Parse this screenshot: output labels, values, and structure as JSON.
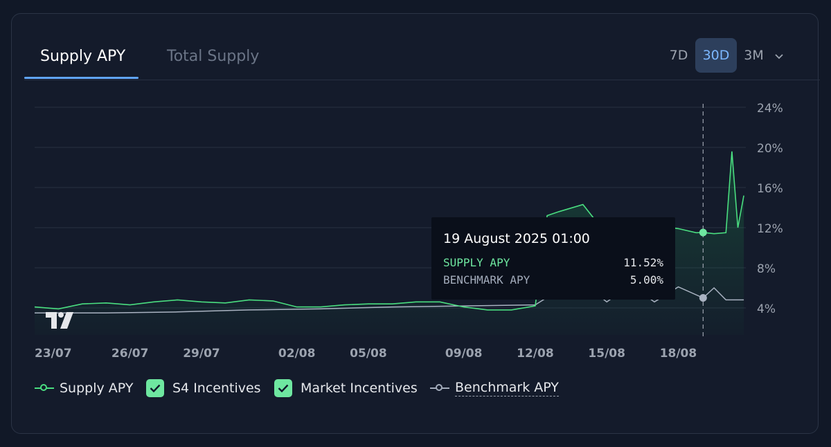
{
  "tabs": [
    {
      "label": "Supply APY",
      "active": true
    },
    {
      "label": "Total Supply",
      "active": false
    }
  ],
  "ranges": [
    {
      "label": "7D",
      "active": false
    },
    {
      "label": "30D",
      "active": true
    },
    {
      "label": "3M",
      "active": false
    }
  ],
  "range_more_icon": "chevron-down-icon",
  "tooltip": {
    "title": "19 August 2025 01:00",
    "rows": [
      {
        "label": "SUPPLY APY",
        "value": "11.52%"
      },
      {
        "label": "BENCHMARK APY",
        "value": "5.00%"
      }
    ]
  },
  "legend": [
    {
      "label": "Supply APY",
      "kind": "line-dot",
      "color": "#4ade80"
    },
    {
      "label": "S4 Incentives",
      "kind": "checkbox",
      "checked": true,
      "color": "#6ee7a0"
    },
    {
      "label": "Market Incentives",
      "kind": "checkbox",
      "checked": true,
      "color": "#6ee7a0"
    },
    {
      "label": "Benchmark APY",
      "kind": "line-dot",
      "color": "#a3acbb"
    }
  ],
  "colors": {
    "supply": "#4ade80",
    "benchmark": "#aab3c2",
    "grid": "#273042",
    "axis_text": "#9ca3af",
    "active_tab_underline": "#60a5fa"
  },
  "chart_data": {
    "type": "line",
    "x_axis_ticks": [
      "23/07",
      "26/07",
      "29/07",
      "02/08",
      "05/08",
      "09/08",
      "12/08",
      "15/08",
      "18/08"
    ],
    "y_axis_ticks": [
      "24%",
      "20%",
      "16%",
      "12%",
      "8%",
      "4%"
    ],
    "ylim": [
      0,
      24
    ],
    "y_ticks_values": [
      24,
      20,
      16,
      12,
      8,
      4
    ],
    "x_domain": [
      "2025-07-22",
      "2025-08-20"
    ],
    "grid": true,
    "crosshair": {
      "date": "2025-08-19 01:00",
      "supply": 11.52,
      "benchmark": 5.0
    },
    "series": [
      {
        "name": "Supply APY",
        "x": [
          "2025-07-22",
          "2025-07-23",
          "2025-07-24",
          "2025-07-25",
          "2025-07-26",
          "2025-07-27",
          "2025-07-28",
          "2025-07-29",
          "2025-07-30",
          "2025-07-31",
          "2025-08-01",
          "2025-08-02",
          "2025-08-03",
          "2025-08-04",
          "2025-08-05",
          "2025-08-06",
          "2025-08-07",
          "2025-08-08",
          "2025-08-09",
          "2025-08-10",
          "2025-08-11",
          "2025-08-12",
          "2025-08-12 12:00",
          "2025-08-13",
          "2025-08-14",
          "2025-08-14 12:00",
          "2025-08-15",
          "2025-08-16",
          "2025-08-17",
          "2025-08-18",
          "2025-08-18 18:00",
          "2025-08-19 01:00",
          "2025-08-19 12:00",
          "2025-08-20",
          "2025-08-20 06:00",
          "2025-08-20 12:00",
          "2025-08-20 18:00"
        ],
        "values": [
          4.1,
          3.9,
          4.4,
          4.5,
          4.3,
          4.6,
          4.8,
          4.6,
          4.5,
          4.8,
          4.7,
          4.1,
          4.1,
          4.3,
          4.4,
          4.4,
          4.6,
          4.6,
          4.1,
          3.8,
          3.8,
          4.2,
          13.2,
          13.6,
          14.3,
          12.8,
          12.4,
          12.3,
          12.2,
          11.9,
          11.5,
          11.52,
          11.4,
          11.5,
          19.6,
          12.0,
          15.2
        ]
      },
      {
        "name": "Benchmark APY",
        "x": [
          "2025-07-22",
          "2025-07-25",
          "2025-07-28",
          "2025-07-31",
          "2025-08-03",
          "2025-08-06",
          "2025-08-09",
          "2025-08-12",
          "2025-08-13",
          "2025-08-14",
          "2025-08-15",
          "2025-08-16",
          "2025-08-17",
          "2025-08-18",
          "2025-08-19 01:00",
          "2025-08-19 12:00",
          "2025-08-20",
          "2025-08-20 18:00"
        ],
        "values": [
          3.5,
          3.5,
          3.6,
          3.8,
          3.9,
          4.1,
          4.2,
          4.3,
          5.8,
          6.5,
          4.6,
          6.3,
          4.6,
          6.1,
          5.0,
          6.0,
          4.8,
          4.8
        ]
      }
    ]
  }
}
